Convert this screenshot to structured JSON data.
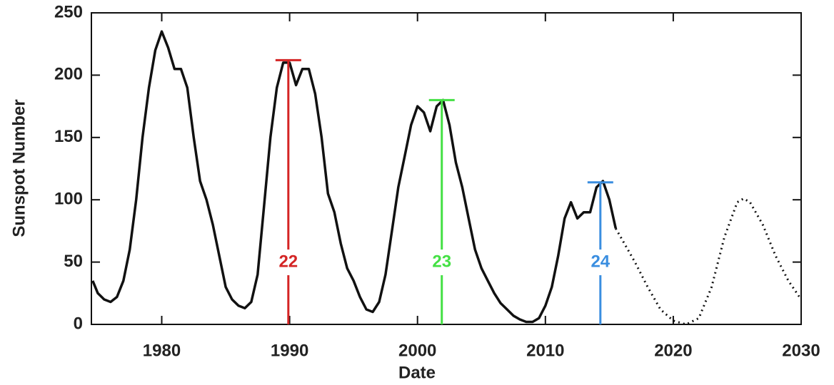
{
  "chart_data": {
    "type": "line",
    "x_label": "Date",
    "y_label": "Sunspot Number",
    "xlim": [
      1974.5,
      2030
    ],
    "xticks": [
      1980,
      1990,
      2000,
      2010,
      2020,
      2030
    ],
    "ylim": [
      0,
      250
    ],
    "yticks": [
      0,
      50,
      100,
      150,
      200,
      250
    ],
    "series": [
      {
        "color": "#111111",
        "style": "solid",
        "x": [
          1974.6,
          1975,
          1975.5,
          1976,
          1976.5,
          1977,
          1977.5,
          1978,
          1978.5,
          1979,
          1979.5,
          1980,
          1980.5,
          1981,
          1981.5,
          1982,
          1982.5,
          1983,
          1983.5,
          1984,
          1984.5,
          1985,
          1985.5,
          1986,
          1986.5,
          1987,
          1987.5,
          1988,
          1988.5,
          1989,
          1989.5,
          1990,
          1990.5,
          1991,
          1991.5,
          1992,
          1992.5,
          1993,
          1993.5,
          1994,
          1994.5,
          1995,
          1995.5,
          1996,
          1996.5,
          1997,
          1997.5,
          1998,
          1998.5,
          1999,
          1999.5,
          2000,
          2000.5,
          2001,
          2001.5,
          2002,
          2002.5,
          2003,
          2003.5,
          2004,
          2004.5,
          2005,
          2005.5,
          2006,
          2006.5,
          2007,
          2007.5,
          2008,
          2008.5,
          2009,
          2009.5,
          2010,
          2010.5,
          2011,
          2011.5,
          2012,
          2012.5,
          2013,
          2013.5,
          2014,
          2014.5,
          2015,
          2015.5
        ],
        "values": [
          35,
          25,
          20,
          18,
          22,
          35,
          60,
          100,
          150,
          190,
          220,
          235,
          222,
          205,
          205,
          190,
          150,
          115,
          100,
          80,
          55,
          30,
          20,
          15,
          13,
          18,
          40,
          95,
          150,
          190,
          210,
          210,
          192,
          205,
          205,
          185,
          150,
          105,
          90,
          65,
          45,
          35,
          22,
          12,
          10,
          18,
          40,
          75,
          110,
          135,
          160,
          175,
          170,
          155,
          175,
          180,
          160,
          130,
          110,
          85,
          60,
          45,
          35,
          25,
          17,
          12,
          7,
          4,
          2,
          2,
          5,
          15,
          30,
          55,
          85,
          98,
          85,
          90,
          90,
          110,
          115,
          100,
          77
        ]
      },
      {
        "color": "#111111",
        "style": "dotted",
        "x": [
          2015.5,
          2016,
          2017,
          2018,
          2019,
          2020,
          2021,
          2022,
          2023,
          2024,
          2025,
          2025.5,
          2026,
          2027,
          2028,
          2029,
          2030
        ],
        "values": [
          77,
          68,
          50,
          30,
          12,
          3,
          0,
          5,
          30,
          70,
          98,
          101,
          98,
          80,
          55,
          35,
          20
        ]
      }
    ],
    "markers": [
      {
        "label": "22",
        "x": 1989.9,
        "value": 212,
        "color": "#d42424"
      },
      {
        "label": "23",
        "x": 2001.9,
        "value": 180,
        "color": "#44e044"
      },
      {
        "label": "24",
        "x": 2014.3,
        "value": 114,
        "color": "#3a8ee0"
      }
    ]
  }
}
